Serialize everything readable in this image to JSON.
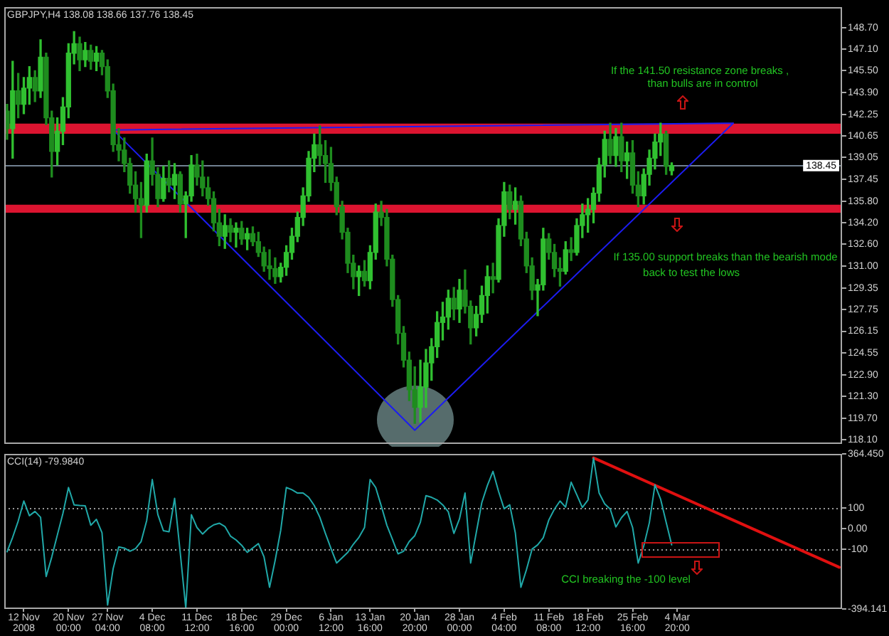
{
  "chart_data": [
    {
      "type": "candlestick",
      "title": "GBPJPY,H4 138.08 138.66 137.76 138.45",
      "categories": [
        null,
        null,
        null,
        "12 Nov 2008",
        null,
        null,
        null,
        null,
        null,
        null,
        null,
        "20 Nov 00:00",
        null,
        null,
        null,
        null,
        null,
        null,
        "27 Nov 04:00",
        null,
        null,
        null,
        null,
        null,
        null,
        null,
        "4 Dec 08:00",
        null,
        null,
        null,
        null,
        null,
        null,
        null,
        "11 Dec 12:00",
        null,
        null,
        null,
        null,
        null,
        null,
        null,
        "18 Dec 16:00",
        null,
        null,
        null,
        null,
        null,
        null,
        null,
        "29 Dec 00:00",
        null,
        null,
        null,
        null,
        null,
        null,
        null,
        "6 Jan 12:00",
        null,
        null,
        null,
        null,
        null,
        null,
        "13 Jan 16:00",
        null,
        null,
        null,
        null,
        null,
        null,
        null,
        "20 Jan 20:00",
        null,
        null,
        null,
        null,
        null,
        null,
        null,
        "28 Jan 00:00",
        null,
        null,
        null,
        null,
        null,
        null,
        null,
        "4 Feb 04:00",
        null,
        null,
        null,
        null,
        null,
        null,
        null,
        "11 Feb 08:00",
        null,
        null,
        null,
        null,
        null,
        null,
        "18 Feb 12:00",
        null,
        null,
        null,
        null,
        null,
        null,
        null,
        "25 Feb 16:00",
        null,
        null,
        null,
        null,
        null,
        null,
        null,
        "4 Mar 20:00",
        null,
        null,
        null,
        null,
        null,
        null,
        null,
        null,
        null,
        null,
        null,
        null,
        null,
        null,
        null,
        null,
        null,
        null,
        null,
        null,
        null,
        null,
        null,
        null,
        null,
        null,
        null,
        null,
        null
      ],
      "ohlc": [
        [
          142.5,
          143.0,
          140.4,
          141.2
        ],
        [
          141.2,
          146.2,
          139.0,
          144.0
        ],
        [
          144.0,
          145.3,
          142.0,
          143.0
        ],
        [
          143.0,
          145.0,
          142.3,
          144.2
        ],
        [
          144.2,
          145.8,
          143.0,
          145.0
        ],
        [
          145.0,
          145.5,
          143.2,
          144.0
        ],
        [
          144.0,
          147.8,
          143.5,
          146.5
        ],
        [
          146.5,
          146.8,
          141.5,
          142.0
        ],
        [
          142.0,
          142.5,
          137.6,
          139.5
        ],
        [
          139.5,
          142.0,
          138.5,
          141.0
        ],
        [
          141.0,
          143.5,
          140.0,
          142.8
        ],
        [
          142.8,
          147.5,
          142.0,
          146.8
        ],
        [
          146.8,
          148.4,
          146.0,
          147.5
        ],
        [
          147.5,
          148.0,
          145.5,
          146.3
        ],
        [
          146.3,
          147.6,
          145.8,
          147.0
        ],
        [
          147.0,
          147.4,
          145.6,
          146.2
        ],
        [
          146.2,
          147.3,
          145.5,
          146.8
        ],
        [
          146.8,
          147.0,
          145.2,
          145.8
        ],
        [
          145.8,
          146.3,
          143.5,
          144.0
        ],
        [
          144.0,
          144.5,
          139.5,
          140.0
        ],
        [
          140.0,
          141.2,
          138.8,
          139.6
        ],
        [
          139.6,
          140.5,
          138.0,
          138.6
        ],
        [
          138.6,
          139.0,
          136.4,
          137.0
        ],
        [
          137.0,
          138.0,
          135.0,
          136.0
        ],
        [
          136.0,
          137.2,
          133.1,
          135.5
        ],
        [
          135.5,
          139.3,
          135.0,
          138.8
        ],
        [
          138.8,
          140.5,
          137.0,
          137.8
        ],
        [
          137.8,
          138.3,
          135.4,
          136.0
        ],
        [
          136.0,
          138.4,
          135.8,
          137.5
        ],
        [
          137.5,
          138.8,
          136.5,
          137.0
        ],
        [
          137.0,
          138.6,
          136.0,
          137.8
        ],
        [
          137.8,
          138.0,
          135.0,
          135.6
        ],
        [
          135.6,
          136.5,
          133.1,
          136.2
        ],
        [
          136.2,
          139.2,
          135.8,
          138.5
        ],
        [
          138.5,
          139.3,
          137.0,
          137.6
        ],
        [
          137.6,
          138.8,
          136.2,
          136.8
        ],
        [
          136.8,
          137.6,
          135.5,
          136.0
        ],
        [
          136.0,
          136.5,
          133.6,
          134.2
        ],
        [
          134.2,
          135.2,
          132.5,
          133.2
        ],
        [
          133.2,
          134.8,
          132.3,
          134.0
        ],
        [
          134.0,
          134.5,
          132.8,
          133.5
        ],
        [
          133.5,
          134.2,
          132.4,
          133.8
        ],
        [
          133.8,
          134.3,
          132.6,
          133.0
        ],
        [
          133.0,
          133.8,
          132.2,
          133.4
        ],
        [
          133.4,
          133.9,
          132.5,
          132.8
        ],
        [
          132.8,
          133.5,
          131.7,
          132.0
        ],
        [
          132.0,
          132.4,
          130.6,
          131.0
        ],
        [
          131.0,
          132.2,
          130.0,
          130.8
        ],
        [
          130.8,
          131.6,
          129.7,
          130.2
        ],
        [
          130.2,
          131.2,
          129.8,
          130.9
        ],
        [
          130.9,
          132.5,
          130.3,
          132.0
        ],
        [
          132.0,
          133.8,
          131.5,
          133.2
        ],
        [
          133.2,
          135.0,
          132.8,
          134.6
        ],
        [
          134.6,
          136.8,
          134.0,
          136.2
        ],
        [
          136.2,
          139.5,
          135.8,
          139.0
        ],
        [
          139.0,
          140.8,
          138.0,
          140.0
        ],
        [
          140.0,
          141.4,
          138.5,
          139.2
        ],
        [
          139.2,
          140.3,
          137.2,
          138.6
        ],
        [
          138.6,
          139.8,
          136.6,
          137.2
        ],
        [
          137.2,
          137.6,
          134.8,
          135.4
        ],
        [
          135.4,
          135.8,
          133.0,
          133.5
        ],
        [
          133.5,
          133.8,
          130.5,
          131.2
        ],
        [
          131.2,
          131.8,
          129.3,
          130.2
        ],
        [
          130.2,
          131.0,
          128.8,
          130.6
        ],
        [
          130.6,
          131.4,
          129.5,
          129.9
        ],
        [
          129.9,
          132.5,
          129.3,
          132.0
        ],
        [
          132.0,
          135.6,
          131.5,
          135.0
        ],
        [
          135.0,
          135.8,
          134.0,
          134.6
        ],
        [
          134.6,
          135.2,
          131.0,
          131.5
        ],
        [
          131.5,
          131.8,
          128.0,
          128.5
        ],
        [
          128.5,
          128.8,
          125.2,
          126.0
        ],
        [
          126.0,
          126.5,
          123.5,
          124.0
        ],
        [
          124.0,
          124.6,
          121.0,
          121.8
        ],
        [
          121.8,
          123.5,
          119.3,
          120.5
        ],
        [
          120.5,
          124.0,
          119.4,
          122.0
        ],
        [
          122.0,
          124.8,
          120.5,
          123.8
        ],
        [
          123.8,
          125.6,
          122.5,
          125.0
        ],
        [
          125.0,
          127.6,
          124.2,
          126.8
        ],
        [
          126.8,
          128.3,
          125.5,
          127.2
        ],
        [
          127.2,
          129.2,
          126.3,
          128.6
        ],
        [
          128.6,
          129.4,
          127.0,
          127.8
        ],
        [
          127.8,
          130.0,
          126.8,
          129.2
        ],
        [
          129.2,
          130.7,
          127.5,
          128.0
        ],
        [
          128.0,
          128.4,
          125.2,
          126.4
        ],
        [
          126.4,
          128.0,
          125.8,
          127.4
        ],
        [
          127.4,
          129.5,
          126.8,
          128.8
        ],
        [
          128.8,
          131.0,
          127.5,
          130.2
        ],
        [
          130.2,
          131.2,
          129.0,
          130.0
        ],
        [
          130.0,
          134.5,
          129.8,
          134.0
        ],
        [
          134.0,
          137.2,
          133.2,
          136.5
        ],
        [
          136.5,
          137.0,
          134.5,
          135.2
        ],
        [
          135.2,
          136.8,
          134.1,
          135.8
        ],
        [
          135.8,
          136.2,
          132.5,
          133.0
        ],
        [
          133.0,
          133.5,
          130.5,
          131.0
        ],
        [
          131.0,
          131.6,
          128.5,
          129.2
        ],
        [
          129.2,
          130.0,
          127.3,
          129.6
        ],
        [
          129.6,
          133.8,
          129.2,
          133.0
        ],
        [
          133.0,
          133.4,
          131.5,
          132.0
        ],
        [
          132.0,
          132.6,
          130.2,
          130.8
        ],
        [
          130.8,
          131.6,
          129.5,
          130.6
        ],
        [
          130.6,
          132.8,
          130.4,
          132.2
        ],
        [
          132.2,
          133.1,
          131.4,
          132.0
        ],
        [
          132.0,
          134.5,
          131.8,
          134.0
        ],
        [
          134.0,
          135.6,
          133.1,
          134.8
        ],
        [
          134.8,
          136.0,
          133.5,
          135.2
        ],
        [
          135.2,
          136.8,
          134.2,
          136.4
        ],
        [
          136.4,
          139.0,
          135.8,
          138.5
        ],
        [
          138.5,
          141.0,
          137.6,
          140.4
        ],
        [
          140.4,
          141.6,
          138.6,
          139.2
        ],
        [
          139.2,
          141.2,
          138.4,
          140.6
        ],
        [
          140.6,
          141.6,
          138.0,
          138.8
        ],
        [
          138.8,
          140.2,
          137.5,
          139.4
        ],
        [
          139.4,
          140.3,
          136.4,
          137.0
        ],
        [
          137.0,
          138.0,
          135.4,
          136.2
        ],
        [
          136.2,
          138.2,
          135.6,
          137.8
        ],
        [
          137.8,
          139.6,
          137.0,
          139.0
        ],
        [
          139.0,
          140.8,
          138.2,
          140.2
        ],
        [
          140.2,
          141.6,
          139.2,
          140.8
        ],
        [
          140.8,
          141.0,
          137.8,
          138.4
        ],
        [
          138.08,
          138.66,
          137.76,
          138.45
        ],
        null,
        null,
        null,
        null,
        null,
        null,
        null,
        null,
        null,
        null,
        null,
        null,
        null,
        null,
        null,
        null,
        null,
        null,
        null,
        null,
        null,
        null,
        null,
        null,
        null,
        null,
        null,
        null,
        null,
        null
      ],
      "colors": [
        "#1e8c1e",
        "#30c030",
        "#1e8c1e",
        "#30c030",
        "#30c030",
        "#1e8c1e",
        "#30c030",
        "#1e8c1e",
        "#1e8c1e",
        "#30c030",
        "#30c030",
        "#30c030",
        "#30c030",
        "#1e8c1e",
        "#30c030",
        "#1e8c1e",
        "#30c030",
        "#1e8c1e",
        "#1e8c1e",
        "#1e8c1e",
        "#1e8c1e",
        "#1e8c1e",
        "#1e8c1e",
        "#1e8c1e",
        "#1e8c1e",
        "#30c030",
        "#1e8c1e",
        "#1e8c1e",
        "#30c030",
        "#1e8c1e",
        "#30c030",
        "#1e8c1e",
        "#30c030",
        "#30c030",
        "#1e8c1e",
        "#1e8c1e",
        "#1e8c1e",
        "#1e8c1e",
        "#1e8c1e",
        "#30c030",
        "#1e8c1e",
        "#30c030",
        "#1e8c1e",
        "#30c030",
        "#1e8c1e",
        "#1e8c1e",
        "#1e8c1e",
        "#1e8c1e",
        "#1e8c1e",
        "#30c030",
        "#30c030",
        "#30c030",
        "#30c030",
        "#30c030",
        "#30c030",
        "#30c030",
        "#1e8c1e",
        "#1e8c1e",
        "#1e8c1e",
        "#1e8c1e",
        "#1e8c1e",
        "#1e8c1e",
        "#1e8c1e",
        "#30c030",
        "#1e8c1e",
        "#30c030",
        "#30c030",
        "#1e8c1e",
        "#1e8c1e",
        "#1e8c1e",
        "#1e8c1e",
        "#1e8c1e",
        "#1e8c1e",
        "#1e8c1e",
        "#30c030",
        "#30c030",
        "#30c030",
        "#30c030",
        "#30c030",
        "#30c030",
        "#1e8c1e",
        "#30c030",
        "#1e8c1e",
        "#1e8c1e",
        "#30c030",
        "#30c030",
        "#30c030",
        "#1e8c1e",
        "#30c030",
        "#30c030",
        "#1e8c1e",
        "#30c030",
        "#1e8c1e",
        "#1e8c1e",
        "#1e8c1e",
        "#30c030",
        "#30c030",
        "#1e8c1e",
        "#1e8c1e",
        "#1e8c1e",
        "#30c030",
        "#1e8c1e",
        "#30c030",
        "#30c030",
        "#30c030",
        "#30c030",
        "#30c030",
        "#30c030",
        "#1e8c1e",
        "#30c030",
        "#1e8c1e",
        "#30c030",
        "#1e8c1e",
        "#1e8c1e",
        "#30c030",
        "#30c030",
        "#30c030",
        "#30c030",
        "#1e8c1e",
        "#30c030",
        null,
        null,
        null,
        null,
        null,
        null,
        null,
        null,
        null,
        null,
        null,
        null,
        null,
        null,
        null,
        null,
        null,
        null,
        null,
        null,
        null,
        null,
        null,
        null,
        null,
        null,
        null,
        null,
        null,
        null
      ],
      "series": [
        {
          "type": "line",
          "color": "#1c1cf0",
          "values": [
            null,
            null,
            null,
            null,
            null,
            null,
            null,
            null,
            null,
            null,
            null,
            null,
            null,
            null,
            null,
            null,
            null,
            null,
            null,
            141.1,
            null,
            null,
            null,
            null,
            null,
            null,
            null,
            null,
            null,
            null,
            null,
            null,
            null,
            null,
            null,
            null,
            null,
            null,
            null,
            null,
            null,
            null,
            null,
            null,
            null,
            null,
            null,
            null,
            null,
            null,
            null,
            null,
            null,
            null,
            null,
            null,
            null,
            null,
            null,
            null,
            null,
            null,
            null,
            null,
            null,
            null,
            null,
            null,
            null,
            null,
            null,
            null,
            null,
            118.8,
            null,
            null,
            null,
            null,
            null,
            null,
            null,
            null,
            null,
            null,
            null,
            null,
            null,
            null,
            null,
            null,
            null,
            null,
            null,
            null,
            null,
            null,
            null,
            null,
            null,
            null,
            null,
            null,
            null,
            null,
            null,
            null,
            null,
            null,
            null,
            null,
            null,
            null,
            null,
            null,
            null,
            null,
            null,
            null,
            null,
            null,
            null,
            null,
            null,
            null,
            null,
            null,
            null,
            null,
            null,
            null,
            141.6,
            null,
            null,
            null,
            null,
            null,
            null,
            null,
            null,
            null,
            null,
            null,
            null,
            null,
            null,
            null,
            null,
            null,
            null,
            null
          ]
        },
        {
          "type": "line",
          "color": "#1c1cf0",
          "values": [
            null,
            null,
            null,
            null,
            null,
            null,
            null,
            null,
            null,
            null,
            null,
            null,
            null,
            null,
            null,
            null,
            null,
            null,
            null,
            141.1,
            null,
            null,
            null,
            null,
            null,
            null,
            null,
            null,
            null,
            null,
            null,
            null,
            null,
            null,
            null,
            null,
            null,
            null,
            null,
            null,
            null,
            null,
            null,
            null,
            null,
            null,
            null,
            null,
            null,
            null,
            null,
            null,
            null,
            null,
            null,
            null,
            null,
            null,
            null,
            null,
            null,
            null,
            null,
            null,
            null,
            null,
            null,
            null,
            null,
            null,
            null,
            null,
            null,
            null,
            null,
            null,
            null,
            null,
            null,
            null,
            null,
            null,
            null,
            null,
            null,
            null,
            null,
            null,
            null,
            null,
            null,
            null,
            null,
            null,
            null,
            null,
            null,
            null,
            null,
            null,
            null,
            null,
            null,
            null,
            null,
            null,
            null,
            null,
            null,
            null,
            null,
            null,
            null,
            null,
            null,
            null,
            null,
            null,
            null,
            null,
            null,
            null,
            null,
            null,
            null,
            null,
            null,
            null,
            null,
            null,
            141.6,
            null,
            null,
            null,
            null,
            null,
            null,
            null,
            null,
            null,
            null,
            null,
            null,
            null,
            null,
            null,
            null,
            null,
            null,
            null
          ]
        }
      ],
      "ylim": [
        117.8,
        150.2
      ],
      "yticks": [
        {
          "value": 148.7,
          "label": "148.70"
        },
        {
          "value": 147.1,
          "label": "147.10"
        },
        {
          "value": 145.5,
          "label": "145.50"
        },
        {
          "value": 143.9,
          "label": "143.90"
        },
        142.25,
        140.65,
        139.05,
        137.45,
        {
          "value": 135.8,
          "label": "135.80"
        },
        {
          "value": 134.2,
          "label": "134.20"
        },
        {
          "value": 132.6,
          "label": "132.60"
        },
        {
          "value": 131,
          "label": "131.00"
        },
        129.35,
        127.75,
        126.15,
        124.55,
        {
          "value": 122.9,
          "label": "122.90"
        },
        {
          "value": 121.3,
          "label": "121.30"
        },
        {
          "value": 119.7,
          "label": "119.70"
        },
        {
          "value": 118.1,
          "label": "118.10"
        }
      ],
      "tick_labels": "y",
      "bands": [
        {
          "axis": "y",
          "from": 140.81,
          "to": 141.57,
          "color": "#dc1430"
        },
        {
          "axis": "y",
          "from": 134.95,
          "to": 135.55,
          "color": "#dc1430"
        }
      ],
      "ref_lines": [
        {
          "axis": "y",
          "value": 138.45,
          "label": "138.45",
          "color": "#708090"
        }
      ],
      "annotations": [
        "If the 141.50 resistance zone breaks ,",
        "than bulls are in control",
        "If 135.00 support breaks than the bearish mode",
        "back to test the lows"
      ]
    },
    {
      "type": "line",
      "title": "CCI(14) -79.9840",
      "categories": [
        null,
        null,
        null,
        "12 Nov 2008",
        null,
        null,
        null,
        null,
        null,
        null,
        null,
        "20 Nov 00:00",
        null,
        null,
        null,
        null,
        null,
        null,
        "27 Nov 04:00",
        null,
        null,
        null,
        null,
        null,
        null,
        null,
        "4 Dec 08:00",
        null,
        null,
        null,
        null,
        null,
        null,
        null,
        "11 Dec 12:00",
        null,
        null,
        null,
        null,
        null,
        null,
        null,
        "18 Dec 16:00",
        null,
        null,
        null,
        null,
        null,
        null,
        null,
        "29 Dec 00:00",
        null,
        null,
        null,
        null,
        null,
        null,
        null,
        "6 Jan 12:00",
        null,
        null,
        null,
        null,
        null,
        null,
        "13 Jan 16:00",
        null,
        null,
        null,
        null,
        null,
        null,
        null,
        "20 Jan 20:00",
        null,
        null,
        null,
        null,
        null,
        null,
        null,
        "28 Jan 00:00",
        null,
        null,
        null,
        null,
        null,
        null,
        null,
        "4 Feb 04:00",
        null,
        null,
        null,
        null,
        null,
        null,
        null,
        "11 Feb 08:00",
        null,
        null,
        null,
        null,
        null,
        null,
        "18 Feb 12:00",
        null,
        null,
        null,
        null,
        null,
        null,
        null,
        "25 Feb 16:00",
        null,
        null,
        null,
        null,
        null,
        null,
        null,
        "4 Mar 20:00",
        null,
        null,
        null,
        null,
        null,
        null,
        null,
        null,
        null,
        null,
        null,
        null,
        null,
        null,
        null,
        null,
        null,
        null,
        null,
        null,
        null,
        null,
        null,
        null,
        null,
        null,
        null,
        null,
        null
      ],
      "series": [
        {
          "color": "#20a8a8",
          "values": [
            -114,
            -43,
            37,
            135,
            63,
            84,
            55,
            -235,
            -140,
            -32,
            74,
            201,
            116,
            113,
            111,
            16,
            45,
            -21,
            -375,
            -196,
            -90,
            -96,
            -111,
            -98,
            -64,
            39,
            240,
            68,
            -11,
            -16,
            148,
            -117,
            -390,
            68,
            5,
            -27,
            0,
            18,
            26,
            10,
            -37,
            -56,
            -82,
            -117,
            -95,
            -74,
            -138,
            -288,
            -156,
            -8,
            201,
            190,
            174,
            174,
            153,
            113,
            55,
            -24,
            -98,
            -169,
            -143,
            -117,
            -77,
            -43,
            5,
            240,
            201,
            111,
            16,
            -53,
            -124,
            -111,
            -64,
            -35,
            31,
            161,
            153,
            140,
            116,
            82,
            -24,
            47,
            174,
            -169,
            -21,
            127,
            211,
            280,
            182,
            97,
            116,
            -21,
            -288,
            -201,
            -101,
            -80,
            -45,
            42,
            95,
            135,
            105,
            227,
            166,
            103,
            140,
            346,
            174,
            121,
            95,
            8,
            53,
            84,
            5,
            -169,
            -85,
            29,
            214,
            145,
            31,
            -80,
            null,
            null,
            null,
            null,
            null,
            null,
            null,
            null,
            null,
            null,
            null,
            null,
            null,
            null,
            null,
            null,
            null,
            null,
            null,
            null,
            null,
            null,
            null,
            null,
            null,
            null,
            null,
            null,
            null,
            null
          ]
        },
        {
          "color": "#e01010",
          "values": [
            null,
            null,
            null,
            null,
            null,
            null,
            null,
            null,
            null,
            null,
            null,
            null,
            null,
            null,
            null,
            null,
            null,
            null,
            null,
            null,
            null,
            null,
            null,
            null,
            null,
            null,
            null,
            null,
            null,
            null,
            null,
            null,
            null,
            null,
            null,
            null,
            null,
            null,
            null,
            null,
            null,
            null,
            null,
            null,
            null,
            null,
            null,
            null,
            null,
            null,
            null,
            null,
            null,
            null,
            null,
            null,
            null,
            null,
            null,
            null,
            null,
            null,
            null,
            null,
            null,
            null,
            null,
            null,
            null,
            null,
            null,
            null,
            null,
            null,
            null,
            null,
            null,
            null,
            null,
            null,
            null,
            null,
            null,
            null,
            null,
            null,
            null,
            null,
            null,
            null,
            null,
            null,
            null,
            null,
            null,
            null,
            null,
            null,
            null,
            null,
            null,
            null,
            null,
            null,
            null,
            346,
            null,
            null,
            null,
            null,
            null,
            null,
            null,
            null,
            null,
            null,
            null,
            null,
            null,
            null,
            null,
            null,
            null,
            null,
            null,
            null,
            null,
            null,
            null,
            null,
            null,
            null,
            null,
            null,
            null,
            null,
            null,
            null,
            null,
            null,
            null,
            null,
            null,
            null,
            null,
            null,
            null,
            null,
            null,
            -190
          ]
        }
      ],
      "ylim": [
        -394.141,
        364.45
      ],
      "yticks": [
        {
          "value": 364.45,
          "label": "364.450"
        },
        100,
        {
          "value": 0,
          "label": "0.00"
        },
        -100,
        {
          "value": -394.141,
          "label": "-394.141"
        }
      ],
      "ref_lines": [
        {
          "axis": "y",
          "value": 100,
          "color": "#9a9a9a",
          "line_style": "dotted"
        },
        {
          "axis": "y",
          "value": -100,
          "color": "#9a9a9a",
          "line_style": "dotted"
        }
      ],
      "annotations": [
        "CCI breaking the -100 level"
      ]
    }
  ]
}
